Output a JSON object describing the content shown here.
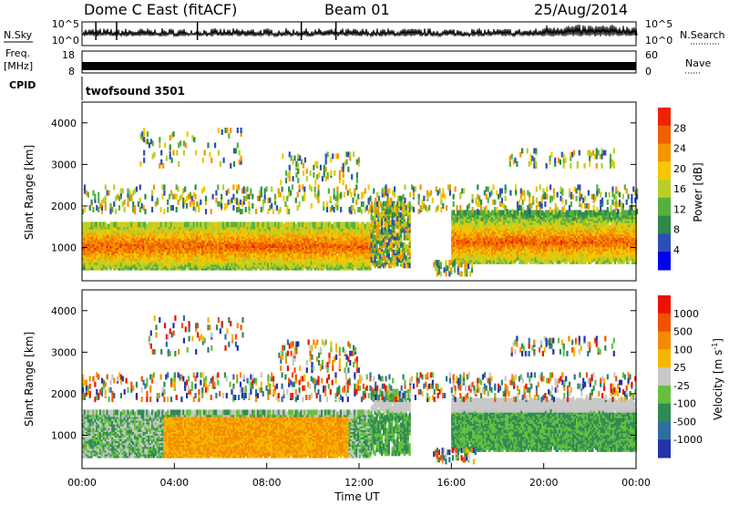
{
  "header": {
    "title_left": "Dome C East (fitACF)",
    "title_center": "Beam 01",
    "title_right": "25/Aug/2014"
  },
  "top_panels": {
    "nsky_label": "N.Sky",
    "nsky_ticks": [
      "10^5",
      "10^0"
    ],
    "nsearch_label": "N.Search",
    "nsearch_ticks": [
      "10^5",
      "10^0"
    ],
    "freq_label": "Freq.",
    "freq_unit": "[MHz]",
    "freq_ticks": [
      "18",
      "8"
    ],
    "nave_label": "Nave",
    "nave_ticks": [
      "60",
      "0"
    ],
    "cpid_label": "CPID",
    "cpid_name": "twofsound 3501"
  },
  "chart_data": [
    {
      "type": "heatmap",
      "name": "power",
      "ylabel": "Slant Range [km]",
      "ylim": [
        200,
        4500
      ],
      "yticks": [
        "4000",
        "3000",
        "2000",
        "1000"
      ],
      "ytick_values": [
        4000,
        3000,
        2000,
        1000
      ],
      "xlim": [
        0,
        24
      ],
      "colorbar_label": "Power [dB]",
      "colorbar_ticks": [
        "28",
        "24",
        "20",
        "16",
        "12",
        "8",
        "4"
      ],
      "colorbar_values": [
        28,
        24,
        20,
        16,
        12,
        8,
        4
      ],
      "colorbar_range": [
        0,
        32
      ],
      "colorbar_colors": [
        "#0000ee",
        "#2b4fb5",
        "#2f8a4a",
        "#55b040",
        "#b8cf2a",
        "#f5c800",
        "#f59500",
        "#f06000",
        "#ee2200"
      ]
    },
    {
      "type": "heatmap",
      "name": "velocity",
      "ylabel": "Slant Range [km]",
      "ylim": [
        200,
        4500
      ],
      "yticks": [
        "4000",
        "3000",
        "2000",
        "1000"
      ],
      "ytick_values": [
        4000,
        3000,
        2000,
        1000
      ],
      "xlim": [
        0,
        24
      ],
      "xlabel": "Time UT",
      "xticks": [
        "00:00",
        "04:00",
        "08:00",
        "12:00",
        "16:00",
        "20:00",
        "00:00"
      ],
      "xtick_values": [
        0,
        4,
        8,
        12,
        16,
        20,
        24
      ],
      "colorbar_label": "Velocity [m s",
      "colorbar_label_sup": "-1",
      "colorbar_label_end": "]",
      "colorbar_ticks": [
        "1000",
        "500",
        "100",
        "25",
        "-25",
        "-100",
        "-500",
        "-1000"
      ],
      "colorbar_colors": [
        "#2233aa",
        "#2f6fa0",
        "#2f8a55",
        "#66c040",
        "#c9c9c9",
        "#f5b800",
        "#f58a00",
        "#f05000",
        "#ee1100"
      ]
    }
  ]
}
